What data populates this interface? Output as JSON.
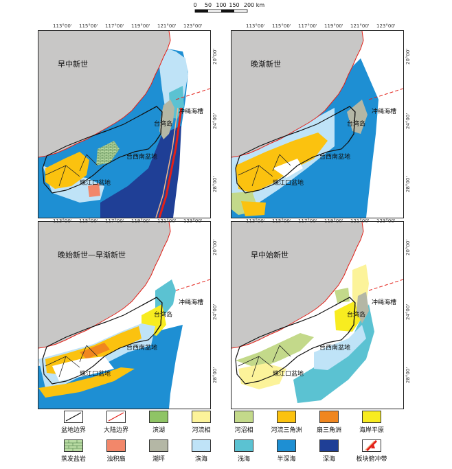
{
  "scale": {
    "ticks": [
      "0",
      "50",
      "100",
      "150",
      "200 km"
    ]
  },
  "lon_ticks": [
    "113°00'",
    "115°00'",
    "117°00'",
    "119°00'",
    "121°00'",
    "123°00'"
  ],
  "lat_ticks": [
    "28°00'",
    "24°00'",
    "20°00'"
  ],
  "panels": [
    {
      "title": "早中新世",
      "labels": {
        "trough": "冲绳海槽",
        "taiwan": "台湾岛",
        "taixinan": "台西南盆地",
        "zhujiang": "珠江口盆地"
      }
    },
    {
      "title": "晚渐新世",
      "labels": {
        "trough": "冲绳海槽",
        "taiwan": "台湾岛",
        "taixinan": "台西南盆地",
        "zhujiang": "珠江口盆地"
      }
    },
    {
      "title": "晚始新世—早渐新世",
      "labels": {
        "trough": "冲绳海槽",
        "taiwan": "台湾岛",
        "taixinan": "台西南盆地",
        "zhujiang": "珠江口盆地"
      }
    },
    {
      "title": "早中始新世",
      "labels": {
        "trough": "冲绳海槽",
        "taiwan": "台湾岛",
        "taixinan": "台西南盆地",
        "zhujiang": "珠江口盆地"
      }
    }
  ],
  "colors": {
    "land": "#c8c7c6",
    "lake": "#8fc465",
    "fluvial": "#fcf39a",
    "marsh": "#c3d98a",
    "delta": "#fbc20f",
    "fan_delta": "#f0861f",
    "coastal_plain": "#f8ec20",
    "evaporite": "#b9dba3",
    "turbidite": "#f2876a",
    "tidal_flat": "#b4b7a5",
    "littoral": "#bfe3f7",
    "neritic": "#5bc2d2",
    "bathyal": "#1e8fd3",
    "abyssal": "#1f3f96",
    "plate": "#e32119"
  },
  "legend": [
    {
      "label": "盆地边界",
      "key": "basin_boundary"
    },
    {
      "label": "大陆边界",
      "key": "continental_boundary"
    },
    {
      "label": "滨湖",
      "key": "lake"
    },
    {
      "label": "河流相",
      "key": "fluvial"
    },
    {
      "label": "河沼相",
      "key": "marsh"
    },
    {
      "label": "河流三角洲",
      "key": "delta"
    },
    {
      "label": "扇三角洲",
      "key": "fan_delta"
    },
    {
      "label": "海岸平原",
      "key": "coastal_plain"
    },
    {
      "label": "蒸发盐岩",
      "key": "evaporite"
    },
    {
      "label": "浊积扇",
      "key": "turbidite"
    },
    {
      "label": "潮坪",
      "key": "tidal_flat"
    },
    {
      "label": "滨海",
      "key": "littoral"
    },
    {
      "label": "浅海",
      "key": "neritic"
    },
    {
      "label": "半深海",
      "key": "bathyal"
    },
    {
      "label": "深海",
      "key": "abyssal"
    },
    {
      "label": "板块俯冲带",
      "key": "subduction"
    }
  ]
}
